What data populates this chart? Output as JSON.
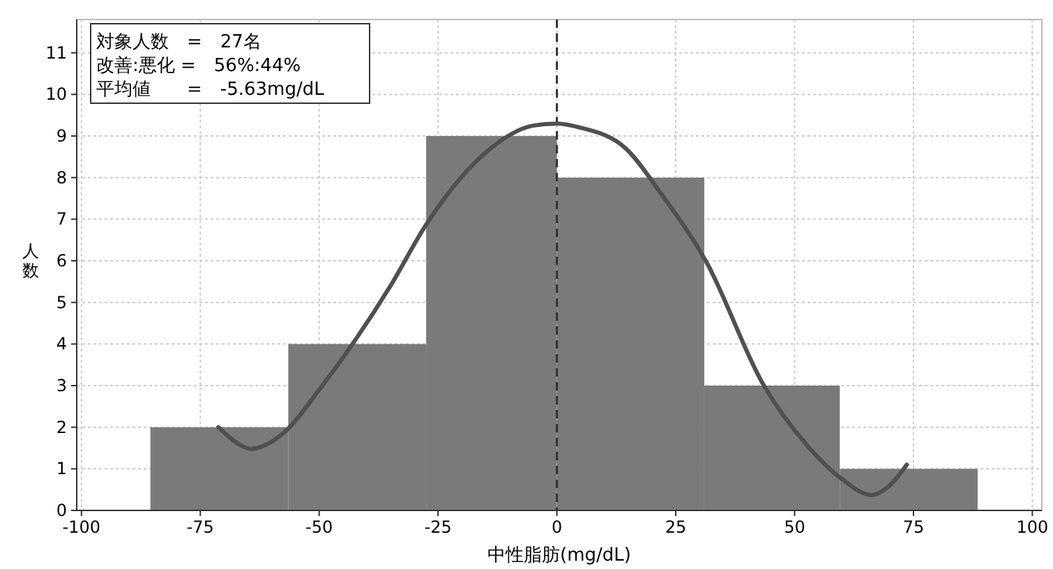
{
  "chart_data": {
    "type": "histogram",
    "xlabel": "中性脂肪(mg/dL)",
    "ylabel": "人数",
    "bins": [
      -85.5,
      -56.5,
      -27.5,
      0,
      31,
      59.5,
      88.5
    ],
    "values": [
      2,
      4,
      9,
      8,
      3,
      1
    ],
    "color": "#7a7a7a",
    "series": [
      {
        "type": "line",
        "color": "#505050",
        "x": [
          -71.2,
          -67,
          -64.4,
          -60,
          -56.4,
          -50,
          -43.1,
          -35,
          -27.5,
          -15,
          -5,
          0,
          5,
          14.5,
          22,
          31.4,
          43.4,
          52.9,
          60,
          66.2,
          70,
          73.6
        ],
        "values": [
          2.0,
          1.6,
          1.48,
          1.65,
          1.98,
          2.9,
          3.98,
          5.4,
          6.87,
          8.6,
          9.25,
          9.3,
          9.2,
          8.7,
          7.6,
          5.98,
          3.03,
          1.53,
          0.75,
          0.37,
          0.6,
          1.1
        ]
      }
    ],
    "xlim": [
      -101,
      102
    ],
    "ylim": [
      0,
      11.8
    ],
    "xticks": [
      -100,
      -75,
      -50,
      -25,
      0,
      25,
      50,
      75,
      100
    ],
    "yticks": [
      0,
      1,
      2,
      3,
      4,
      5,
      6,
      7,
      8,
      9,
      10,
      11
    ],
    "grid": true,
    "ref_lines": [
      {
        "axis": "x",
        "value": 0,
        "color": "#333333",
        "line_style": "dashed"
      }
    ],
    "annotations": [
      "対象人数　=　27名",
      "改善:悪化 =　56%:44%",
      "平均値　　=　-5.63mg/dL"
    ]
  }
}
